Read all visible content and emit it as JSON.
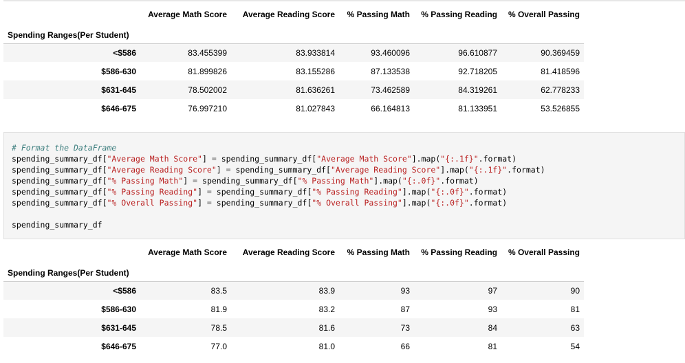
{
  "table_raw": {
    "columns": [
      "Average Math Score",
      "Average Reading Score",
      "% Passing Math",
      "% Passing Reading",
      "% Overall Passing"
    ],
    "index_name": "Spending Ranges(Per Student)",
    "rows": [
      {
        "label": "<$586",
        "values": [
          "83.455399",
          "83.933814",
          "93.460096",
          "96.610877",
          "90.369459"
        ]
      },
      {
        "label": "$586-630",
        "values": [
          "81.899826",
          "83.155286",
          "87.133538",
          "92.718205",
          "81.418596"
        ]
      },
      {
        "label": "$631-645",
        "values": [
          "78.502002",
          "81.636261",
          "73.462589",
          "84.319261",
          "62.778233"
        ]
      },
      {
        "label": "$646-675",
        "values": [
          "76.997210",
          "81.027843",
          "66.164813",
          "81.133951",
          "53.526855"
        ]
      }
    ]
  },
  "code_cell": {
    "comment": "# Format the DataFrame",
    "lines": [
      {
        "var": "spending_summary_df",
        "key": "\"Average Math Score\"",
        "fmt": "\"{:.1f}\""
      },
      {
        "var": "spending_summary_df",
        "key": "\"Average Reading Score\"",
        "fmt": "\"{:.1f}\""
      },
      {
        "var": "spending_summary_df",
        "key": "\"% Passing Math\"",
        "fmt": "\"{:.0f}\""
      },
      {
        "var": "spending_summary_df",
        "key": "\"% Passing Reading\"",
        "fmt": "\"{:.0f}\""
      },
      {
        "var": "spending_summary_df",
        "key": "\"% Overall Passing\"",
        "fmt": "\"{:.0f}\""
      }
    ],
    "map_suffix": "].map(",
    "format_suffix": ".format)",
    "last_line": "spending_summary_df"
  },
  "table_formatted": {
    "columns": [
      "Average Math Score",
      "Average Reading Score",
      "% Passing Math",
      "% Passing Reading",
      "% Overall Passing"
    ],
    "index_name": "Spending Ranges(Per Student)",
    "rows": [
      {
        "label": "<$586",
        "values": [
          "83.5",
          "83.9",
          "93",
          "97",
          "90"
        ]
      },
      {
        "label": "$586-630",
        "values": [
          "81.9",
          "83.2",
          "87",
          "93",
          "81"
        ]
      },
      {
        "label": "$631-645",
        "values": [
          "78.5",
          "81.6",
          "73",
          "84",
          "63"
        ]
      },
      {
        "label": "$646-675",
        "values": [
          "77.0",
          "81.0",
          "66",
          "81",
          "54"
        ]
      }
    ]
  }
}
